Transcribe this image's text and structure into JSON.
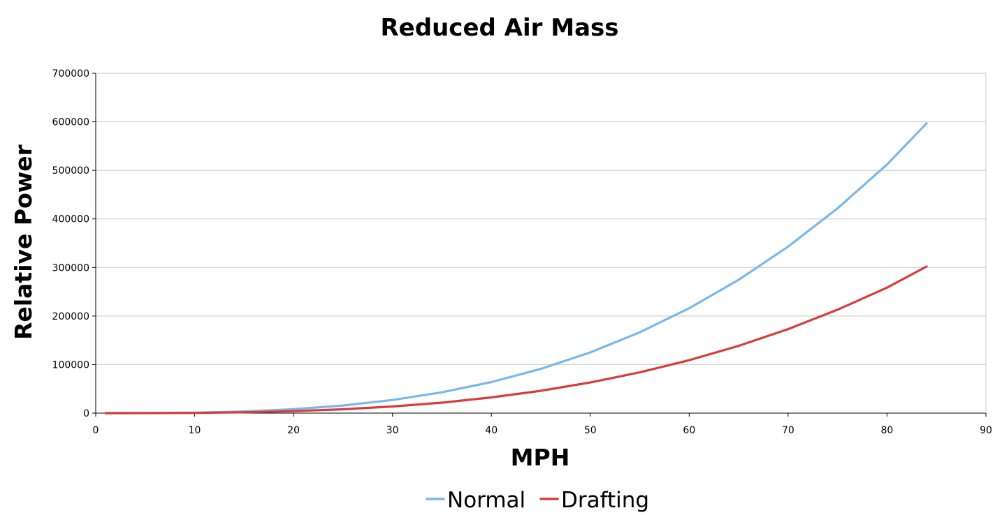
{
  "chart_data": {
    "type": "line",
    "title": "Reduced Air Mass",
    "xlabel": "MPH",
    "ylabel": "Relative Power",
    "xlim": [
      0,
      90
    ],
    "ylim": [
      0,
      700000
    ],
    "x_ticks": [
      "0",
      "10",
      "20",
      "30",
      "40",
      "50",
      "60",
      "70",
      "80",
      "90"
    ],
    "y_ticks": [
      "0",
      "100000",
      "200000",
      "300000",
      "400000",
      "500000",
      "600000",
      "700000"
    ],
    "grid": "horizontal",
    "legend_position": "bottom",
    "series": [
      {
        "name": "Normal",
        "color": "#7ab8ea",
        "x": [
          1,
          5,
          10,
          15,
          20,
          25,
          30,
          35,
          40,
          45,
          50,
          55,
          60,
          65,
          70,
          75,
          80,
          84
        ],
        "values": [
          0,
          100,
          1000,
          3400,
          8000,
          15600,
          27000,
          42900,
          64000,
          91100,
          125000,
          166400,
          216000,
          274600,
          343000,
          421900,
          512000,
          597000
        ]
      },
      {
        "name": "Drafting",
        "color": "#d93b3b",
        "x": [
          1,
          5,
          10,
          15,
          20,
          25,
          30,
          35,
          40,
          45,
          50,
          55,
          60,
          65,
          70,
          75,
          80,
          84
        ],
        "values": [
          0,
          60,
          500,
          1700,
          4000,
          7900,
          13600,
          21600,
          32300,
          46000,
          63100,
          84000,
          109000,
          138600,
          173000,
          213000,
          258500,
          302000
        ]
      }
    ]
  }
}
